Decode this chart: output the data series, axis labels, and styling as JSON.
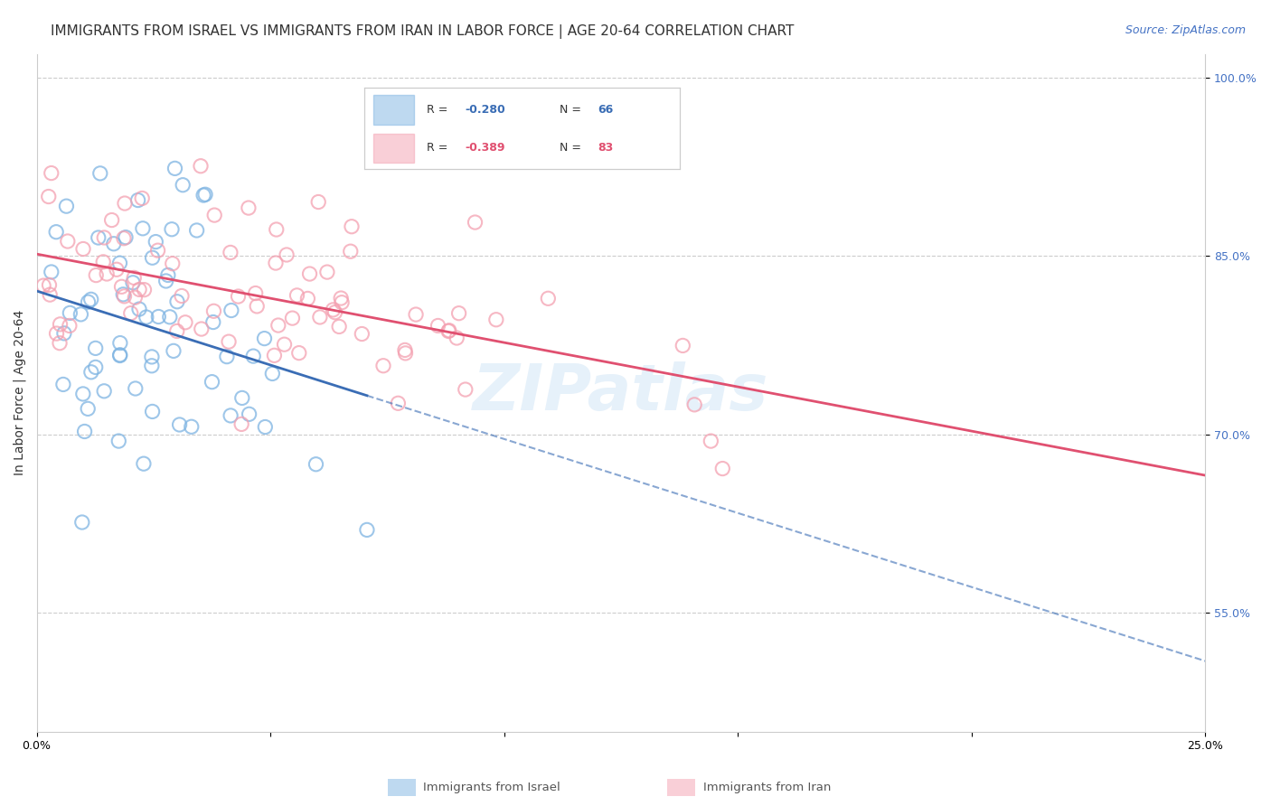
{
  "title": "IMMIGRANTS FROM ISRAEL VS IMMIGRANTS FROM IRAN IN LABOR FORCE | AGE 20-64 CORRELATION CHART",
  "source": "Source: ZipAtlas.com",
  "ylabel": "In Labor Force | Age 20-64",
  "xlim": [
    0.0,
    0.25
  ],
  "ylim": [
    0.45,
    1.02
  ],
  "yticks_right": [
    0.55,
    0.7,
    0.85,
    1.0
  ],
  "ytick_labels_right": [
    "55.0%",
    "70.0%",
    "85.0%",
    "100.0%"
  ],
  "xtick_labels": [
    "0.0%",
    "",
    "",
    "",
    "",
    "25.0%"
  ],
  "legend_blue_r": "-0.280",
  "legend_blue_n": "66",
  "legend_pink_r": "-0.389",
  "legend_pink_n": "83",
  "blue_color": "#7EB4E2",
  "pink_color": "#F4A0B0",
  "blue_line_color": "#3A6DB5",
  "pink_line_color": "#E05070",
  "watermark": "ZIPatlas",
  "title_fontsize": 11,
  "source_fontsize": 9,
  "axis_label_fontsize": 10,
  "tick_fontsize": 9
}
